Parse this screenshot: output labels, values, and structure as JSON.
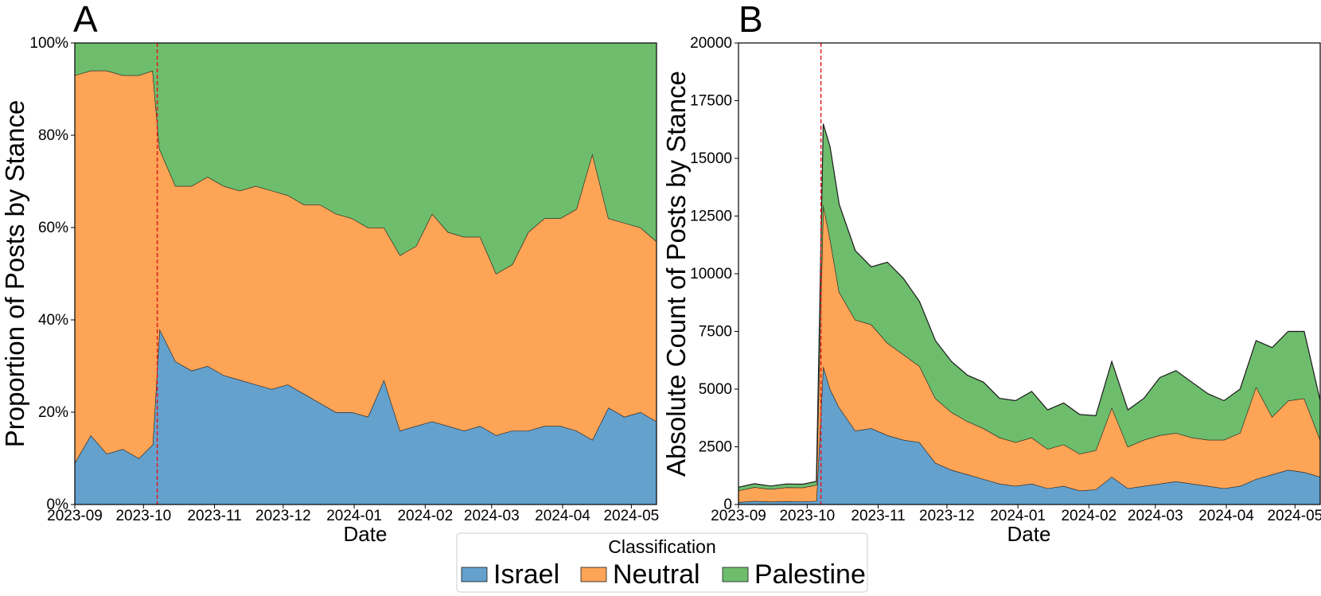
{
  "chart_data": [
    {
      "panel": "A",
      "type": "area",
      "stacked": true,
      "normalized": true,
      "xlabel": "Date",
      "ylabel": "Proportion of Posts by Stance",
      "ylim": [
        0,
        100
      ],
      "yticks": [
        "0%",
        "20%",
        "40%",
        "60%",
        "80%",
        "100%"
      ],
      "xticks": [
        "2023-09",
        "2023-10",
        "2023-11",
        "2023-12",
        "2024-01",
        "2024-02",
        "2024-03",
        "2024-04",
        "2024-05"
      ],
      "event_line": "2023-10-07",
      "dates": [
        "2023-09-01",
        "2023-09-08",
        "2023-09-15",
        "2023-09-22",
        "2023-09-29",
        "2023-10-05",
        "2023-10-08",
        "2023-10-15",
        "2023-10-22",
        "2023-10-29",
        "2023-11-05",
        "2023-11-12",
        "2023-11-19",
        "2023-11-26",
        "2023-12-03",
        "2023-12-10",
        "2023-12-17",
        "2023-12-24",
        "2023-12-31",
        "2024-01-07",
        "2024-01-14",
        "2024-01-21",
        "2024-01-28",
        "2024-02-04",
        "2024-02-11",
        "2024-02-18",
        "2024-02-25",
        "2024-03-03",
        "2024-03-10",
        "2024-03-17",
        "2024-03-24",
        "2024-03-31",
        "2024-04-07",
        "2024-04-14",
        "2024-04-21",
        "2024-04-28",
        "2024-05-05",
        "2024-05-12"
      ],
      "series": [
        {
          "name": "Israel",
          "values": [
            9,
            15,
            11,
            12,
            10,
            13,
            38,
            31,
            29,
            30,
            28,
            27,
            26,
            25,
            26,
            24,
            22,
            20,
            20,
            19,
            27,
            16,
            17,
            18,
            17,
            16,
            17,
            15,
            16,
            16,
            17,
            17,
            16,
            14,
            21,
            19,
            20,
            18
          ]
        },
        {
          "name": "Neutral",
          "values": [
            84,
            79,
            83,
            81,
            83,
            81,
            39,
            38,
            40,
            41,
            41,
            41,
            43,
            43,
            41,
            41,
            43,
            43,
            42,
            41,
            33,
            38,
            39,
            45,
            42,
            42,
            41,
            35,
            36,
            43,
            45,
            45,
            48,
            62,
            41,
            42,
            40,
            39
          ]
        },
        {
          "name": "Palestine",
          "values": [
            7,
            6,
            6,
            7,
            7,
            6,
            23,
            31,
            31,
            29,
            31,
            32,
            31,
            32,
            33,
            35,
            35,
            37,
            38,
            40,
            40,
            46,
            44,
            37,
            41,
            42,
            42,
            50,
            48,
            41,
            38,
            38,
            36,
            24,
            38,
            39,
            40,
            43
          ]
        }
      ]
    },
    {
      "panel": "B",
      "type": "area",
      "stacked": true,
      "xlabel": "Date",
      "ylabel": "Absolute Count of Posts by Stance",
      "ylim": [
        0,
        20000
      ],
      "yticks": [
        "0",
        "2500",
        "5000",
        "7500",
        "10000",
        "12500",
        "15000",
        "17500",
        "20000"
      ],
      "xticks": [
        "2023-09",
        "2023-10",
        "2023-11",
        "2023-12",
        "2024-01",
        "2024-02",
        "2024-03",
        "2024-04",
        "2024-05"
      ],
      "event_line": "2023-10-07",
      "dates": [
        "2023-09-01",
        "2023-09-08",
        "2023-09-15",
        "2023-09-22",
        "2023-09-29",
        "2023-10-05",
        "2023-10-08",
        "2023-10-11",
        "2023-10-15",
        "2023-10-22",
        "2023-10-29",
        "2023-11-05",
        "2023-11-12",
        "2023-11-19",
        "2023-11-26",
        "2023-12-03",
        "2023-12-10",
        "2023-12-17",
        "2023-12-24",
        "2023-12-31",
        "2024-01-07",
        "2024-01-14",
        "2024-01-21",
        "2024-01-28",
        "2024-02-04",
        "2024-02-11",
        "2024-02-18",
        "2024-02-25",
        "2024-03-03",
        "2024-03-10",
        "2024-03-17",
        "2024-03-24",
        "2024-03-31",
        "2024-04-07",
        "2024-04-14",
        "2024-04-21",
        "2024-04-28",
        "2024-05-05",
        "2024-05-12"
      ],
      "series": [
        {
          "name": "Israel",
          "values": [
            100,
            150,
            120,
            140,
            130,
            150,
            6000,
            5000,
            4200,
            3200,
            3300,
            3000,
            2800,
            2700,
            1800,
            1500,
            1300,
            1100,
            900,
            800,
            900,
            700,
            800,
            600,
            650,
            1200,
            700,
            800,
            900,
            1000,
            900,
            800,
            700,
            800,
            1100,
            1300,
            1500,
            1400,
            1200
          ]
        },
        {
          "name": "Neutral",
          "values": [
            500,
            600,
            550,
            600,
            600,
            700,
            7000,
            6500,
            5000,
            4800,
            4500,
            4000,
            3700,
            3300,
            2800,
            2500,
            2300,
            2200,
            2000,
            1900,
            2000,
            1700,
            1800,
            1600,
            1700,
            3000,
            1800,
            2000,
            2100,
            2100,
            2000,
            2000,
            2100,
            2300,
            4000,
            2500,
            3000,
            3200,
            1600
          ]
        },
        {
          "name": "Palestine",
          "values": [
            150,
            150,
            130,
            150,
            150,
            150,
            3500,
            4000,
            3800,
            3000,
            2500,
            3500,
            3300,
            2800,
            2500,
            2200,
            2000,
            2000,
            1700,
            1800,
            2000,
            1700,
            1800,
            1700,
            1500,
            2000,
            1600,
            1800,
            2500,
            2700,
            2400,
            2000,
            1700,
            1900,
            2000,
            3000,
            3000,
            2900,
            1700
          ]
        }
      ]
    }
  ],
  "legend": {
    "title": "Classification",
    "items": [
      "Israel",
      "Neutral",
      "Palestine"
    ]
  },
  "colors": {
    "Israel": "#64a1cd",
    "Neutral": "#fda457",
    "Palestine": "#6dbd6d",
    "event_line": "#e31a1c"
  }
}
